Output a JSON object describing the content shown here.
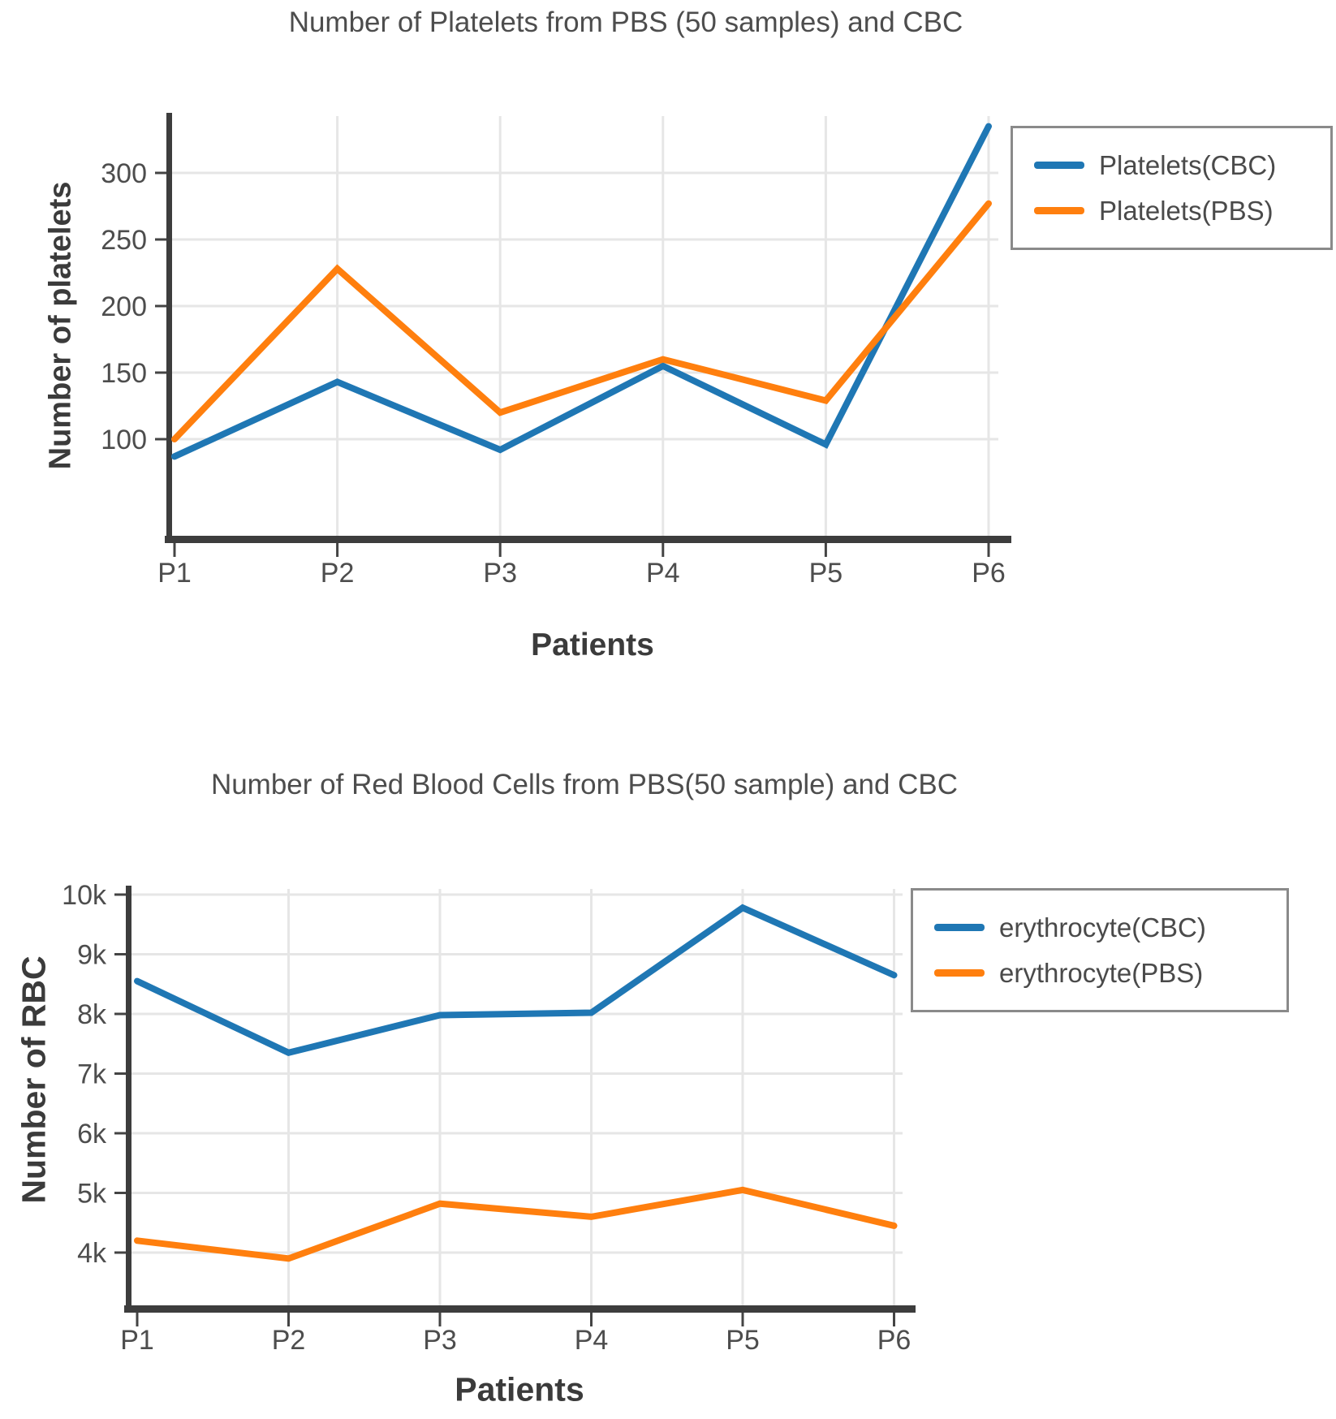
{
  "chart_data": [
    {
      "type": "line",
      "title": "Number of Platelets from PBS (50 samples) and CBC",
      "xlabel": "Patients",
      "ylabel": "Number of platelets",
      "categories": [
        "P1",
        "P2",
        "P3",
        "P4",
        "P5",
        "P6"
      ],
      "series": [
        {
          "name": "Platelets(CBC)",
          "color": "#1f77b4",
          "values": [
            87,
            143,
            92,
            155,
            96,
            335
          ]
        },
        {
          "name": "Platelets(PBS)",
          "color": "#ff7f0e",
          "values": [
            100,
            228,
            120,
            160,
            129,
            277
          ]
        }
      ],
      "yticks": [
        {
          "value": 100,
          "label": "100"
        },
        {
          "value": 150,
          "label": "150"
        },
        {
          "value": 200,
          "label": "200"
        },
        {
          "value": 250,
          "label": "250"
        },
        {
          "value": 300,
          "label": "300"
        }
      ],
      "ylim": [
        27,
        343
      ],
      "grid": true,
      "legend_position": "top-right",
      "grid_color": "#e6e6e6",
      "axis_color": "#3d3d3d",
      "tick_color": "#444444",
      "tick_label_color": "#4d4d4d"
    },
    {
      "type": "line",
      "title": "Number of Red Blood Cells from PBS(50 sample) and CBC",
      "xlabel": "Patients",
      "ylabel": "Number of RBC",
      "categories": [
        "P1",
        "P2",
        "P3",
        "P4",
        "P5",
        "P6"
      ],
      "series": [
        {
          "name": "erythrocyte(CBC)",
          "color": "#1f77b4",
          "values": [
            8550,
            7350,
            7980,
            8020,
            9780,
            8650
          ]
        },
        {
          "name": "erythrocyte(PBS)",
          "color": "#ff7f0e",
          "values": [
            4200,
            3900,
            4820,
            4600,
            5050,
            4450
          ]
        }
      ],
      "yticks": [
        {
          "value": 4000,
          "label": "4k"
        },
        {
          "value": 5000,
          "label": "5k"
        },
        {
          "value": 6000,
          "label": "6k"
        },
        {
          "value": 7000,
          "label": "7k"
        },
        {
          "value": 8000,
          "label": "8k"
        },
        {
          "value": 9000,
          "label": "9k"
        },
        {
          "value": 10000,
          "label": "10k"
        }
      ],
      "ylim": [
        3100,
        10100
      ],
      "grid": true,
      "legend_position": "top-right",
      "grid_color": "#e6e6e6",
      "axis_color": "#3d3d3d",
      "tick_color": "#444444",
      "tick_label_color": "#4d4d4d"
    }
  ]
}
